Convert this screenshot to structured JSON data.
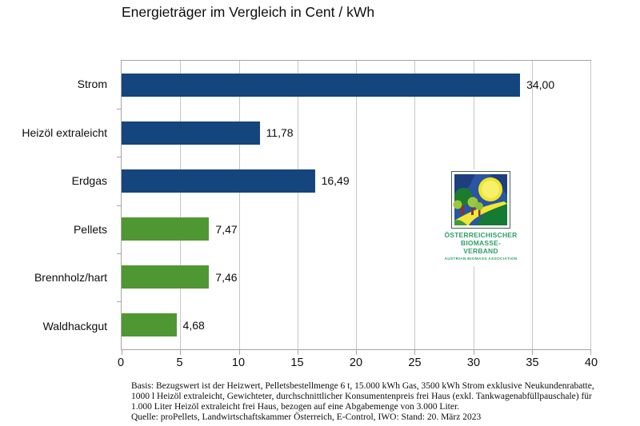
{
  "title": "Energieträger im Vergleich in Cent / kWh",
  "chart_data": {
    "type": "bar",
    "orientation": "horizontal",
    "title": "Energieträger im Vergleich in Cent / kWh",
    "categories": [
      "Strom",
      "Heizöl extraleicht",
      "Erdgas",
      "Pellets",
      "Brennholz/hart",
      "Waldhackgut"
    ],
    "values": [
      34.0,
      11.78,
      16.49,
      7.47,
      7.46,
      4.68
    ],
    "value_labels": [
      "34,00",
      "11,78",
      "16,49",
      "7,47",
      "7,46",
      "4,68"
    ],
    "bar_colors": [
      "#15457d",
      "#15457d",
      "#15457d",
      "#4f9732",
      "#4f9732",
      "#4f9732"
    ],
    "xlim": [
      0,
      40
    ],
    "x_ticks": [
      0,
      5,
      10,
      15,
      20,
      25,
      30,
      35,
      40
    ],
    "x_tick_labels": [
      "0",
      "5",
      "10",
      "15",
      "20",
      "25",
      "30",
      "35",
      "40"
    ],
    "grid": true,
    "legend": "none",
    "unit": "Cent / kWh"
  },
  "colors": {
    "navy": "#15457d",
    "green": "#4f9732",
    "gridline": "#c6c6c6",
    "axis": "#a6a6a6",
    "logo_green": "#2f9e68"
  },
  "logo": {
    "line1": "ÖSTERREICHISCHER",
    "line2": "BIOMASSE-VERBAND",
    "line3": "AUSTRIAN BIOMASS ASSOCIATION"
  },
  "footer": {
    "lines": [
      "Basis: Bezugswert ist der Heizwert, Pelletsbestellmenge 6 t, 15.000 kWh Gas, 3500 kWh Strom exklusive Neukundenrabatte,",
      "1000 l Heizöl extraleicht, Gewichteter, durchschnittlicher Konsumentenpreis frei Haus (exkl. Tankwagenabfüllpauschale) für",
      "1.000 Liter Heizöl extraleicht frei Haus, bezogen auf eine Abgabemenge von 3.000 Liter.",
      "Quelle: proPellets, Landwirtschaftskammer Österreich, E-Control, IWO: Stand: 20. März 2023"
    ]
  }
}
